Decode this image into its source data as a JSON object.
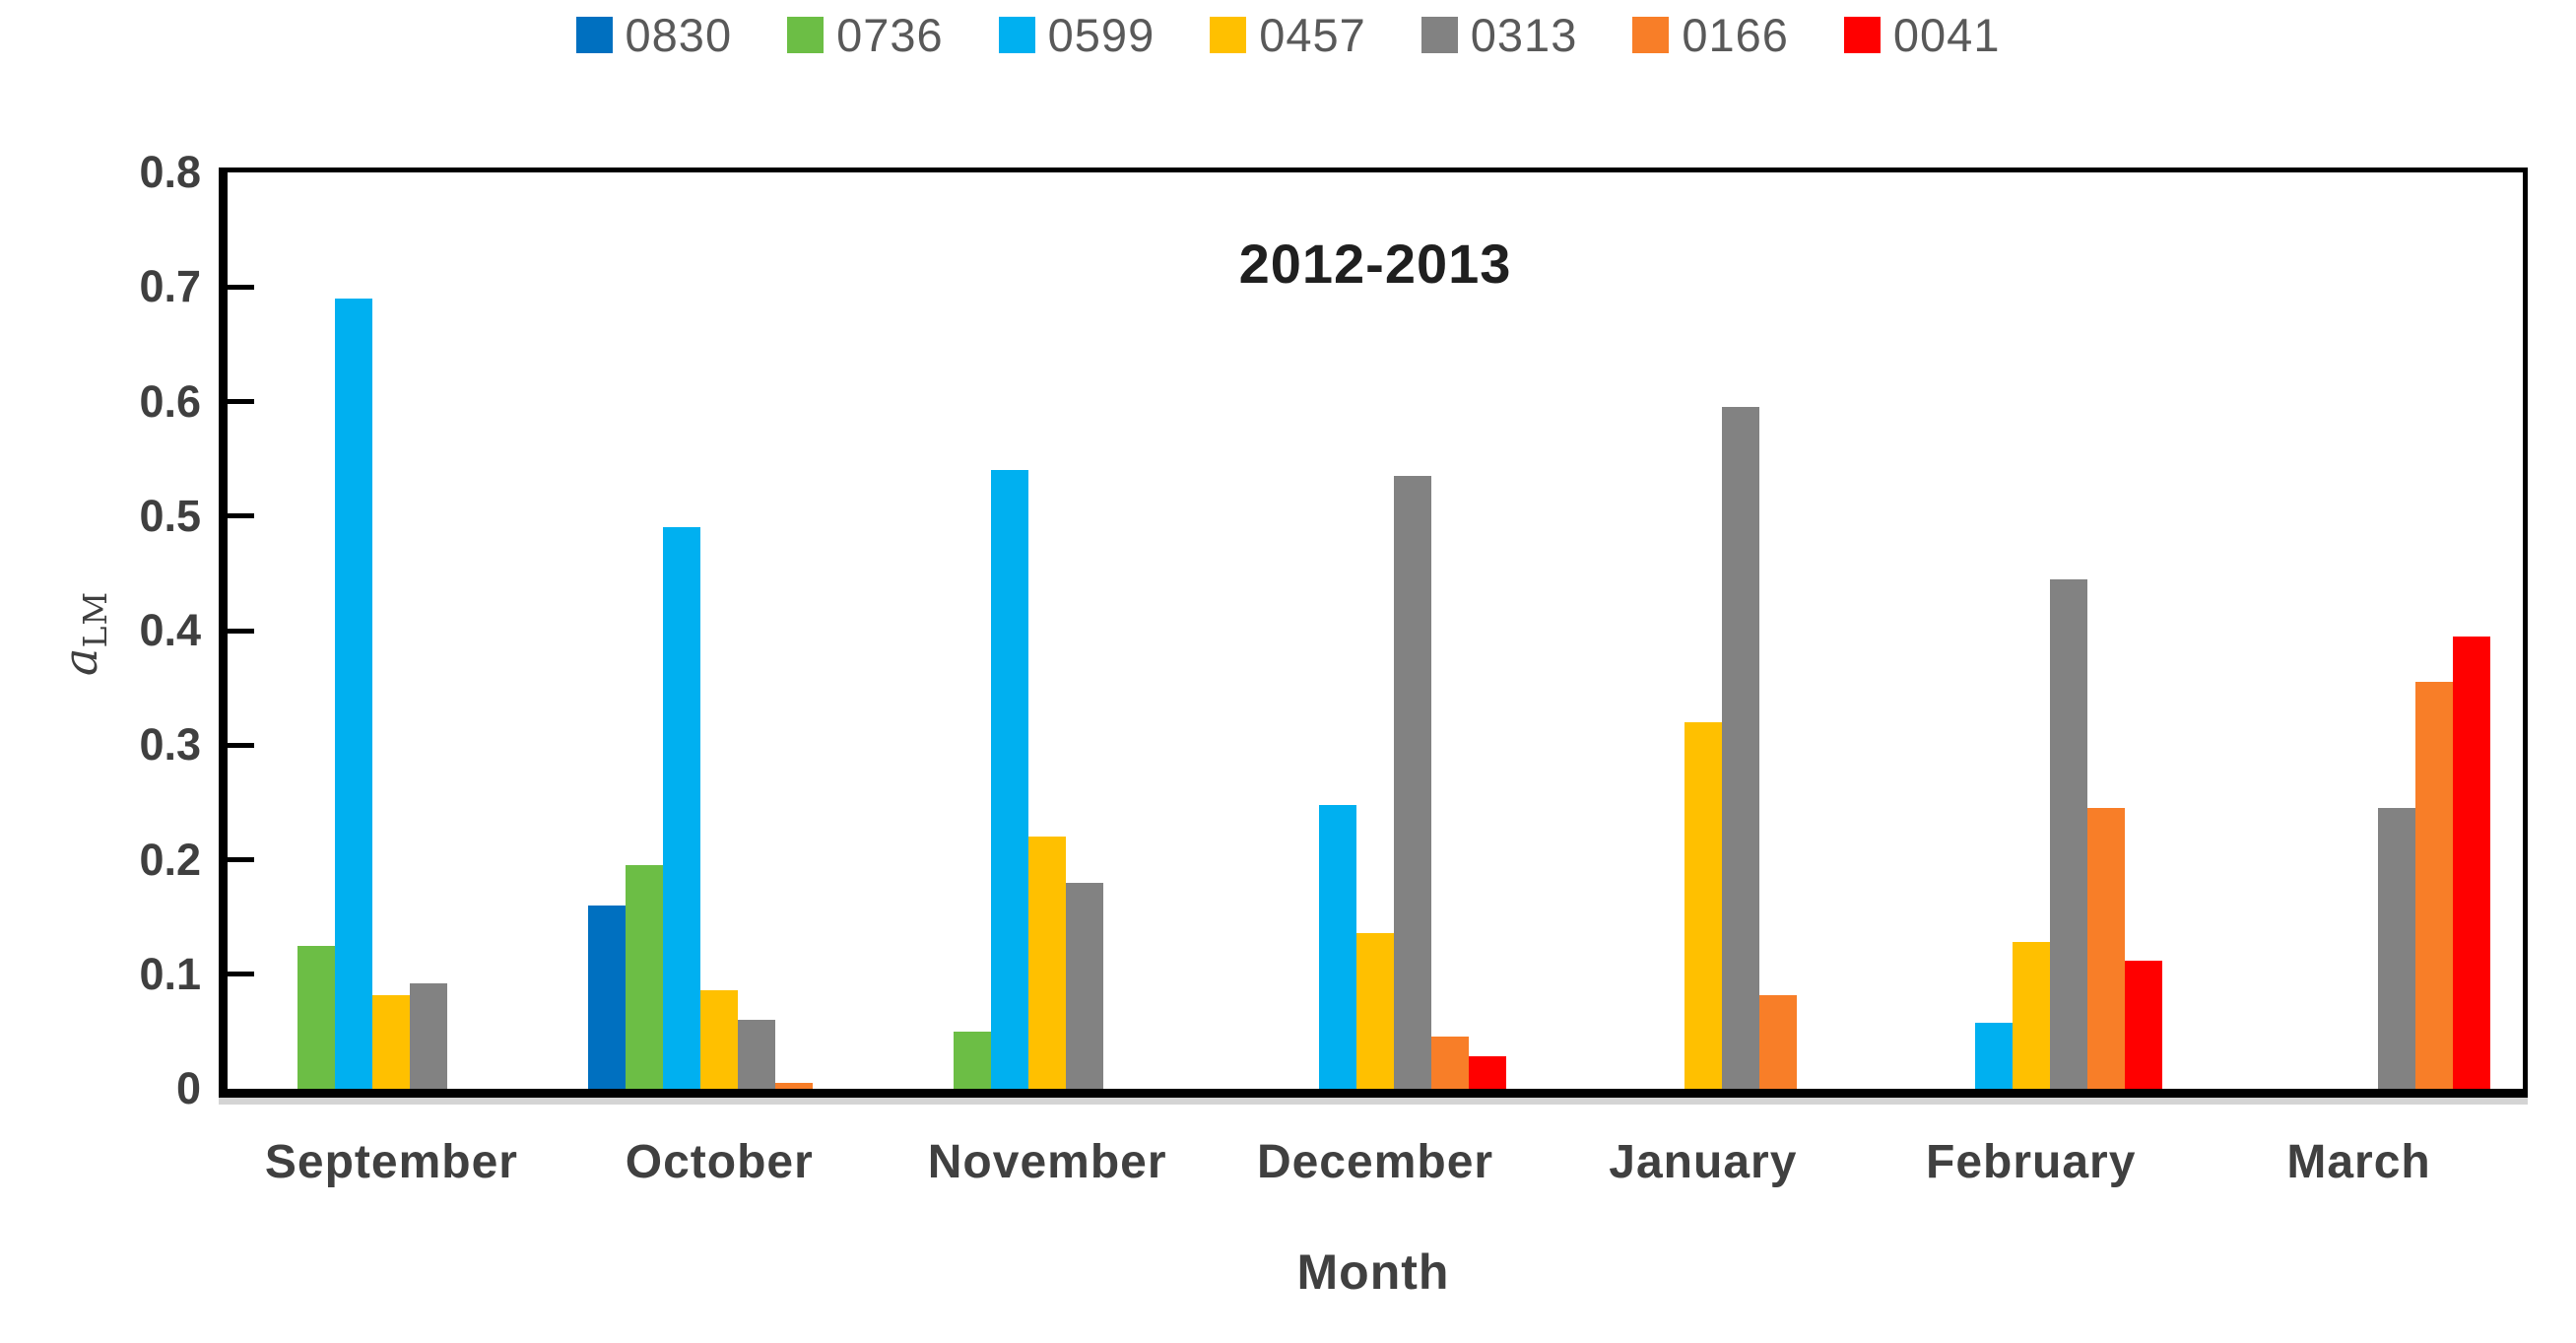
{
  "chart_data": {
    "type": "bar",
    "title": "2012-2013",
    "xlabel": "Month",
    "ylabel": "a_LM",
    "ylabel_var": "a",
    "ylabel_sub": "LM",
    "ylim": [
      0,
      0.8
    ],
    "yticks": [
      0.8,
      0.7,
      0.6,
      0.5,
      0.4,
      0.3,
      0.2,
      0.1,
      0
    ],
    "ytick_labels": [
      "0.8",
      "0.7",
      "0.6",
      "0.5",
      "0.4",
      "0.3",
      "0.2",
      "0.1",
      "0"
    ],
    "grid": false,
    "legend_position": "top",
    "categories": [
      "September",
      "October",
      "November",
      "December",
      "January",
      "February",
      "March"
    ],
    "series": [
      {
        "name": "0830",
        "color": "#0070C0",
        "pattern": false,
        "values": [
          0,
          0.16,
          0,
          0,
          0,
          0,
          0
        ]
      },
      {
        "name": "0736",
        "color": "#6CBE45",
        "pattern": false,
        "values": [
          0.125,
          0.195,
          0.05,
          0,
          0,
          0,
          0
        ]
      },
      {
        "name": "0599",
        "color": "#00B0F0",
        "pattern": false,
        "values": [
          0.69,
          0.49,
          0.54,
          0.248,
          0,
          0.058,
          0
        ]
      },
      {
        "name": "0457",
        "color": "#FFC000",
        "pattern": false,
        "values": [
          0.082,
          0.086,
          0.22,
          0.136,
          0.32,
          0.128,
          0
        ]
      },
      {
        "name": "0313",
        "color": "#828282",
        "pattern": true,
        "values": [
          0.092,
          0.06,
          0.18,
          0.535,
          0.595,
          0.445,
          0.245
        ]
      },
      {
        "name": "0166",
        "color": "#F87E28",
        "pattern": false,
        "values": [
          0,
          0.005,
          0,
          0.046,
          0.082,
          0.245,
          0.355
        ]
      },
      {
        "name": "0041",
        "color": "#FF0000",
        "pattern": false,
        "values": [
          0,
          0,
          0,
          0.028,
          0,
          0.112,
          0.395
        ]
      }
    ]
  }
}
